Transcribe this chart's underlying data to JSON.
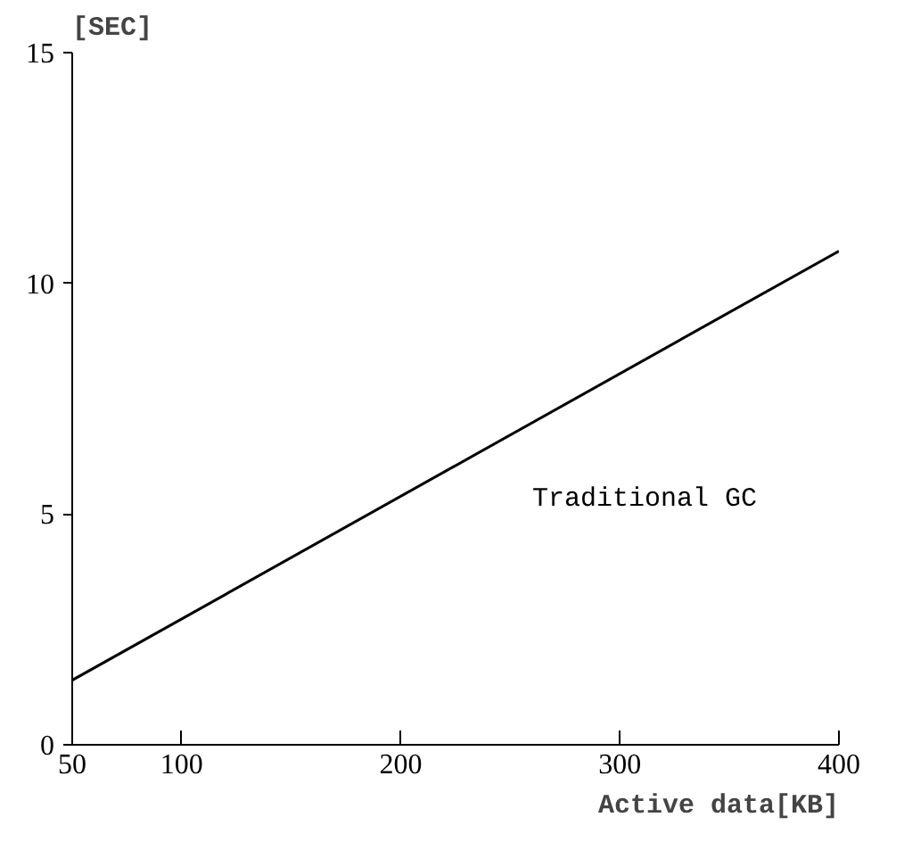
{
  "chart_data": {
    "type": "line",
    "x": [
      50,
      400
    ],
    "series": [
      {
        "name": "Traditional GC",
        "color": "#000000",
        "values": [
          1.4,
          10.7
        ]
      }
    ],
    "xlabel": "Active data[KB]",
    "ylabel": "[SEC]",
    "xlim": [
      50,
      400
    ],
    "xticks": [
      50,
      100,
      200,
      300,
      400
    ],
    "ylim": [
      0,
      15
    ],
    "yticks": [
      0,
      5,
      10,
      15
    ],
    "grid": false,
    "legend": false,
    "marker": "none",
    "line_style": "solid"
  }
}
